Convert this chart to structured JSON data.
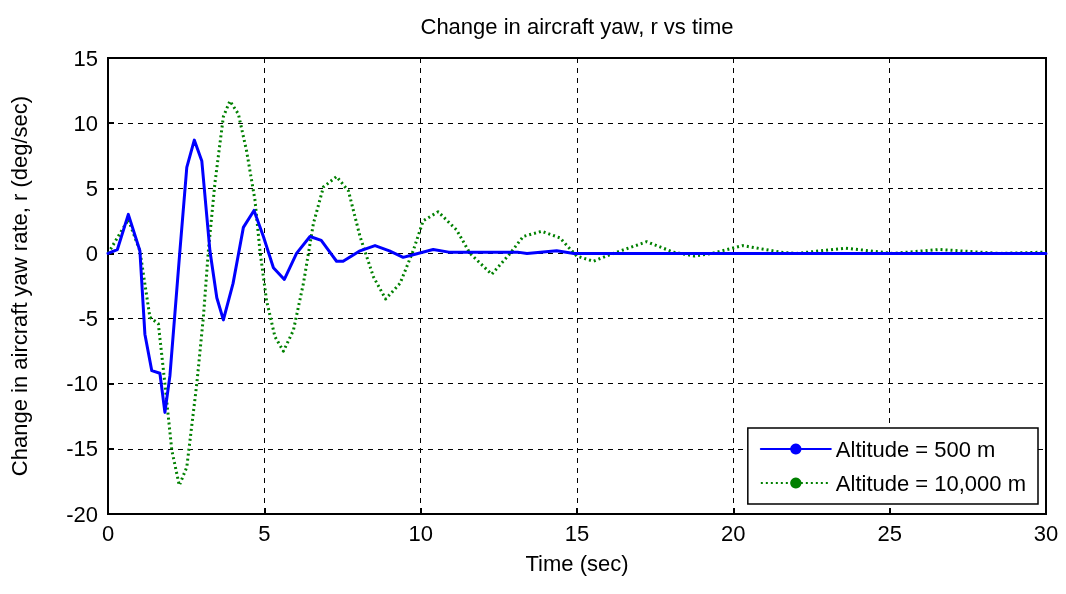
{
  "chart_data": {
    "type": "line",
    "title": "Change in aircraft yaw, r vs time",
    "xlabel": "Time (sec)",
    "ylabel": "Change in aircraft yaw rate, r (deg/sec)",
    "xlim": [
      0,
      30
    ],
    "xticks": [
      0,
      5,
      10,
      15,
      20,
      25,
      30
    ],
    "ylim": [
      -20,
      15
    ],
    "yticks": [
      -20,
      -15,
      -10,
      -5,
      0,
      5,
      10,
      15
    ],
    "grid": true,
    "legend": "bottom right",
    "marker": "none",
    "series": [
      {
        "name": "Altitude = 500 m",
        "color": "#0000ff",
        "line_style": "solid",
        "x": [
          0,
          0.3,
          0.65,
          1.02,
          1.18,
          1.4,
          1.66,
          1.82,
          1.98,
          2.3,
          2.52,
          2.76,
          3.0,
          3.26,
          3.48,
          3.69,
          4.0,
          4.33,
          4.67,
          4.97,
          5.29,
          5.64,
          6.03,
          6.46,
          6.82,
          7.31,
          7.52,
          8.06,
          8.54,
          9.0,
          9.44,
          9.76,
          10.4,
          10.9,
          12.2,
          13.1,
          13.4,
          14.35,
          14.9,
          20,
          25,
          30
        ],
        "values": [
          0,
          0.3,
          3.0,
          0.2,
          -6.2,
          -9.0,
          -9.2,
          -12.2,
          -9.4,
          0.2,
          6.6,
          8.7,
          7.1,
          0.2,
          -3.4,
          -5.1,
          -2.3,
          2.0,
          3.3,
          1.3,
          -1.1,
          -2.0,
          0,
          1.3,
          1.0,
          -0.6,
          -0.6,
          0.2,
          0.6,
          0.2,
          -0.3,
          -0.1,
          0.3,
          0.1,
          0.1,
          0.1,
          0,
          0.2,
          0,
          0,
          0,
          0
        ]
      },
      {
        "name": "Altitude = 10,000 m",
        "color": "#008000",
        "line_style": "dotted",
        "x": [
          0,
          0.65,
          1.02,
          1.34,
          1.61,
          1.82,
          2.04,
          2.28,
          2.52,
          2.84,
          3.05,
          3.21,
          3.42,
          3.69,
          3.9,
          4.17,
          4.43,
          4.7,
          4.86,
          5.07,
          5.34,
          5.61,
          5.93,
          6.25,
          6.57,
          6.89,
          7.31,
          7.69,
          8.06,
          8.49,
          8.88,
          9.34,
          9.76,
          10.08,
          10.56,
          11.15,
          11.58,
          12.27,
          12.86,
          13.28,
          13.87,
          14.45,
          14.99,
          15.52,
          16.16,
          17.23,
          18.08,
          18.75,
          19.3,
          20.3,
          21.5,
          22.0,
          23.6,
          25.1,
          26.6,
          28.5,
          30
        ],
        "values": [
          0,
          2.6,
          0.2,
          -4.9,
          -5.4,
          -10,
          -15.1,
          -17.8,
          -16.4,
          -10,
          -4.9,
          0.2,
          5.4,
          10.5,
          11.7,
          10.7,
          7.9,
          4.1,
          0.2,
          -3.6,
          -6.4,
          -7.5,
          -5.9,
          -2.3,
          2.3,
          5.1,
          5.9,
          4.8,
          1.3,
          -1.8,
          -3.5,
          -2.3,
          0.2,
          2.5,
          3.2,
          1.8,
          0,
          -1.6,
          0,
          1.3,
          1.7,
          1.2,
          -0.2,
          -0.6,
          0,
          0.9,
          0.1,
          -0.2,
          0,
          0.6,
          0.1,
          0,
          0.4,
          0,
          0.3,
          0,
          0.1
        ]
      }
    ]
  }
}
